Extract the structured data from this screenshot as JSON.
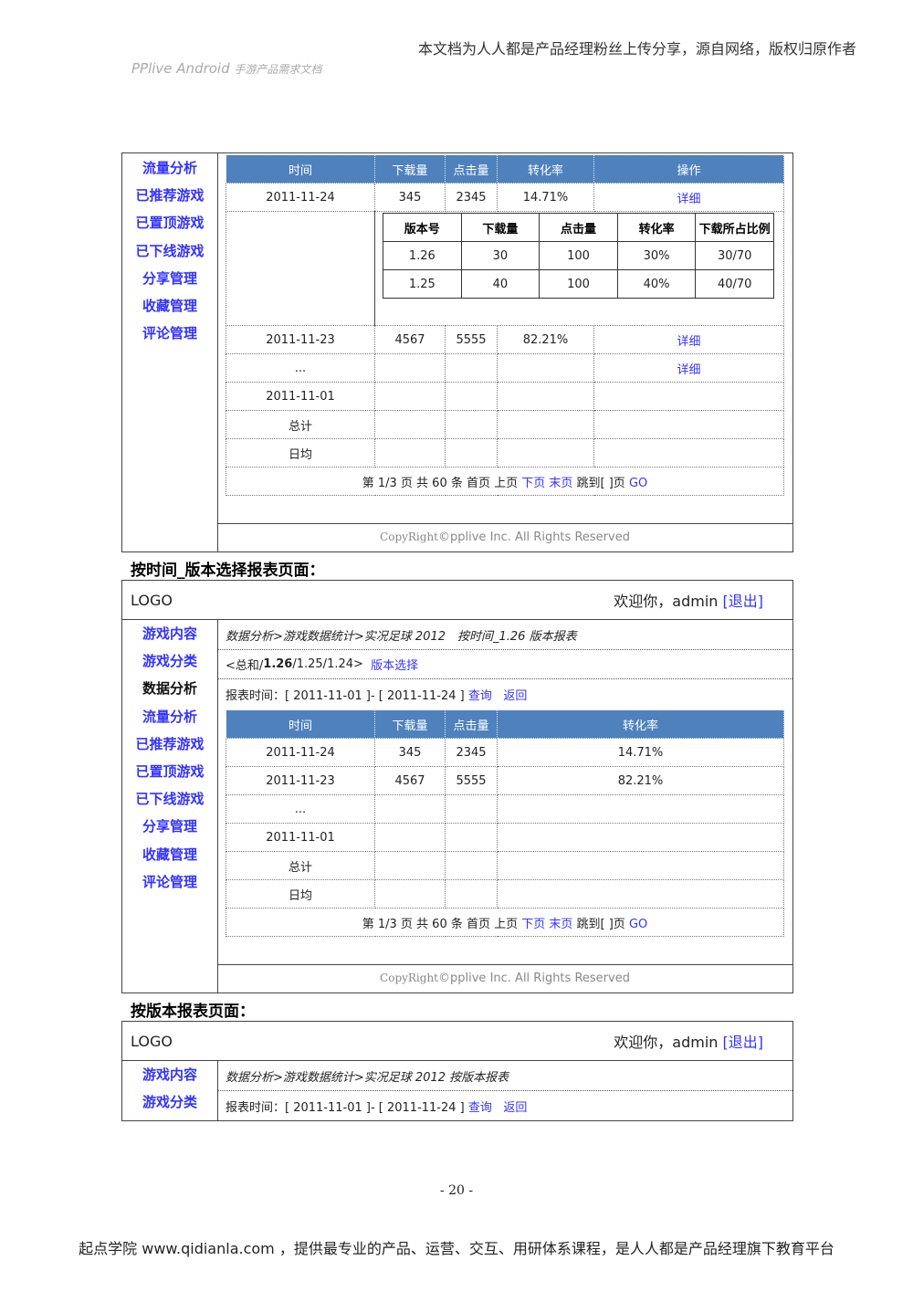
{
  "header": {
    "note": "本文档为人人都是产品经理粉丝上传分享，源自网络，版权归原作者",
    "doc_title": "PPlive Android",
    "doc_subtitle": "手游产品需求文档"
  },
  "mock1": {
    "sidebar": [
      "流量分析",
      "已推荐游戏",
      "已置顶游戏",
      "已下线游戏",
      "分享管理",
      "收藏管理",
      "评论管理"
    ],
    "columns": [
      "时间",
      "下载量",
      "点击量",
      "转化率",
      "操作"
    ],
    "rows": [
      [
        "2011-11-24",
        "345",
        "2345",
        "14.71%",
        "详细"
      ]
    ],
    "inner_columns": [
      "版本号",
      "下载量",
      "点击量",
      "转化率",
      "下载所占比例"
    ],
    "inner_rows": [
      [
        "1.26",
        "30",
        "100",
        "30%",
        "30/70"
      ],
      [
        "1.25",
        "40",
        "100",
        "40%",
        "40/70"
      ]
    ],
    "rows2": [
      [
        "2011-11-23",
        "4567",
        "5555",
        "82.21%",
        "详细"
      ],
      [
        "...",
        "",
        "",
        "",
        "详细"
      ],
      [
        "2011-11-01",
        "",
        "",
        "",
        ""
      ],
      [
        "总计",
        "",
        "",
        "",
        ""
      ],
      [
        "日均",
        "",
        "",
        "",
        ""
      ]
    ],
    "copyright_a": "CopyRight",
    "copyright_b": "©pplive Inc. All Rights Reserved"
  },
  "pager": {
    "text1": "第 1/3 页 共 60 条 首页 上页",
    "next": "下页",
    "last": "末页",
    "jump": "跳到[ ]页",
    "go": "GO"
  },
  "section2_title": "按时间_版本选择报表页面：",
  "mock2": {
    "logo": "LOGO",
    "welcome": "欢迎你，admin",
    "logout": "[退出]",
    "sidebar": [
      "游戏内容",
      "游戏分类",
      "数据分析",
      "流量分析",
      "已推荐游戏",
      "已置顶游戏",
      "已下线游戏",
      "分享管理",
      "收藏管理",
      "评论管理"
    ],
    "current_sidebar": "数据分析",
    "breadcrumb": "数据分析>游戏数据统计>实况足球 2012　按时间_1.26 版本报表",
    "version_prefix": "<总和/",
    "version_current": "1.26",
    "version_rest": "/1.25/1.24>",
    "version_select": "版本选择",
    "report_time": "报表时间：[ 2011-11-01 ]- [ 2011-11-24 ]",
    "query": "查询",
    "back": "返回",
    "columns": [
      "时间",
      "下载量",
      "点击量",
      "转化率"
    ],
    "rows": [
      [
        "2011-11-24",
        "345",
        "2345",
        "14.71%"
      ],
      [
        "2011-11-23",
        "4567",
        "5555",
        "82.21%"
      ],
      [
        "...",
        "",
        "",
        ""
      ],
      [
        "2011-11-01",
        "",
        "",
        ""
      ],
      [
        "总计",
        "",
        "",
        ""
      ],
      [
        "日均",
        "",
        "",
        ""
      ]
    ]
  },
  "section3_title": "按版本报表页面：",
  "mock3": {
    "logo": "LOGO",
    "welcome": "欢迎你，admin",
    "logout": "[退出]",
    "sidebar": [
      "游戏内容",
      "游戏分类"
    ],
    "breadcrumb": "数据分析>游戏数据统计>实况足球 2012 按版本报表",
    "report_time": "报表时间：[ 2011-11-01 ]- [ 2011-11-24 ]",
    "query": "查询",
    "back": "返回"
  },
  "page_number": "- 20 -",
  "footer": "起点学院 www.qidianla.com ，提供最专业的产品、运营、交互、用研体系课程，是人人都是产品经理旗下教育平台",
  "colors": {
    "header_blue": "#4f81bd",
    "link": "#3333ff"
  }
}
